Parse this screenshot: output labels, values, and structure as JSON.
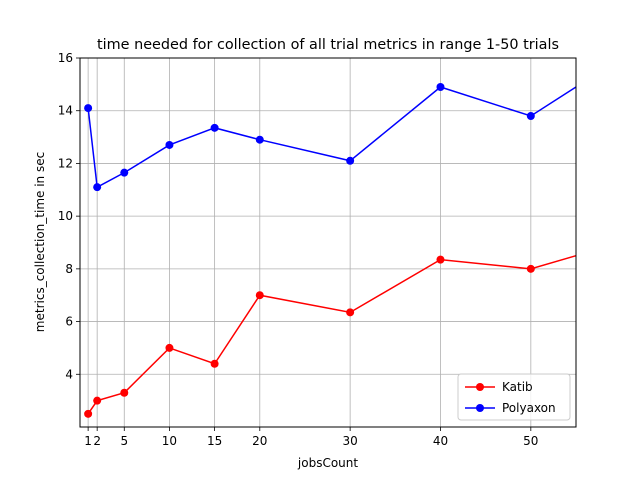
{
  "chart_data": {
    "type": "line",
    "title": "time needed for collection of all trial metrics in range 1-50 trials",
    "xlabel": "jobsCount",
    "ylabel": "metrics_collection_time in sec",
    "x": [
      1,
      2,
      5,
      10,
      15,
      20,
      30,
      40,
      50,
      55
    ],
    "xticks": [
      1,
      2,
      5,
      10,
      15,
      20,
      30,
      40,
      50
    ],
    "yticks": [
      4,
      6,
      8,
      10,
      12,
      14,
      16
    ],
    "xlim": [
      0.1,
      55
    ],
    "ylim": [
      2.0,
      16
    ],
    "grid": true,
    "legend_position": "lower-right",
    "series": [
      {
        "name": "Katib",
        "color": "#ff0000",
        "values": [
          2.5,
          3.0,
          3.3,
          5.0,
          4.4,
          7.0,
          6.35,
          8.35,
          8.0,
          8.5
        ]
      },
      {
        "name": "Polyaxon",
        "color": "#0000ff",
        "values": [
          14.1,
          11.1,
          11.65,
          12.7,
          13.35,
          12.9,
          12.1,
          14.9,
          13.8,
          14.9
        ]
      }
    ]
  }
}
